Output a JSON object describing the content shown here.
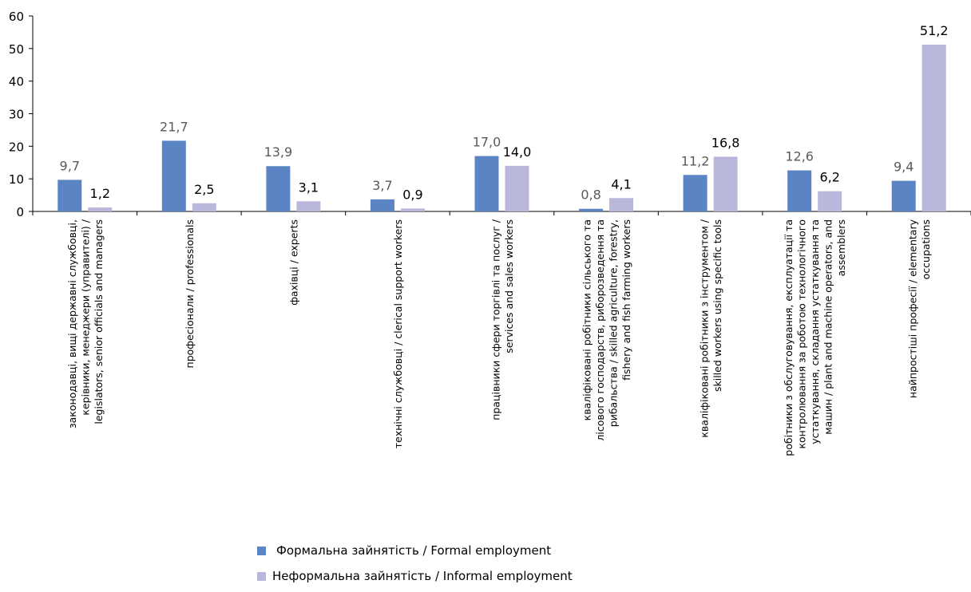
{
  "chart_data": {
    "type": "bar",
    "ylim": [
      0,
      60
    ],
    "yticks": [
      0,
      10,
      20,
      30,
      40,
      50,
      60
    ],
    "grid": false,
    "legend_position": "bottom",
    "categories": [
      [
        "законодавці, вищі державні службовці,",
        "керівники, менеджери (управителі) /",
        "legislators, senior officials and managers"
      ],
      [
        "професіонали / professionals"
      ],
      [
        "фахівці / experts"
      ],
      [
        "технічні службовці / clerical support workers"
      ],
      [
        "працівники сфери торгівлі та послуг /",
        "services and sales workers"
      ],
      [
        "кваліфіковані робітники сільського та",
        "лісового господарств, риборозведення та",
        "рибальства / skilled agriculture, forestry,",
        "fishery and fish farming workers"
      ],
      [
        "кваліфіковані робітники з інструментом /",
        "skilled workers using specific tools"
      ],
      [
        "робітники з обслуговування, експлуатації та",
        "контролювання за роботою технологічного",
        "устаткування, складання устаткування та",
        "машин / plant and machine operators, and",
        "assemblers"
      ],
      [
        "найпростіші професії / elementary",
        "occupations"
      ]
    ],
    "series": [
      {
        "name": "Формальна зайнятість / Formal employment",
        "color": "#5b84c4",
        "label_color": "#595959",
        "values": [
          9.7,
          21.7,
          13.9,
          3.7,
          17.0,
          0.8,
          11.2,
          12.6,
          9.4
        ],
        "labels": [
          "9,7",
          "21,7",
          "13,9",
          "3,7",
          "17,0",
          "0,8",
          "11,2",
          "12,6",
          "9,4"
        ]
      },
      {
        "name": "Неформальна зайнятість / Informal employment",
        "color": "#b9b8dc",
        "label_color": "#000000",
        "values": [
          1.2,
          2.5,
          3.1,
          0.9,
          14.0,
          4.1,
          16.8,
          6.2,
          51.2
        ],
        "labels": [
          "1,2",
          "2,5",
          "3,1",
          "0,9",
          "14,0",
          "4,1",
          "16,8",
          "6,2",
          "51,2"
        ]
      }
    ]
  }
}
